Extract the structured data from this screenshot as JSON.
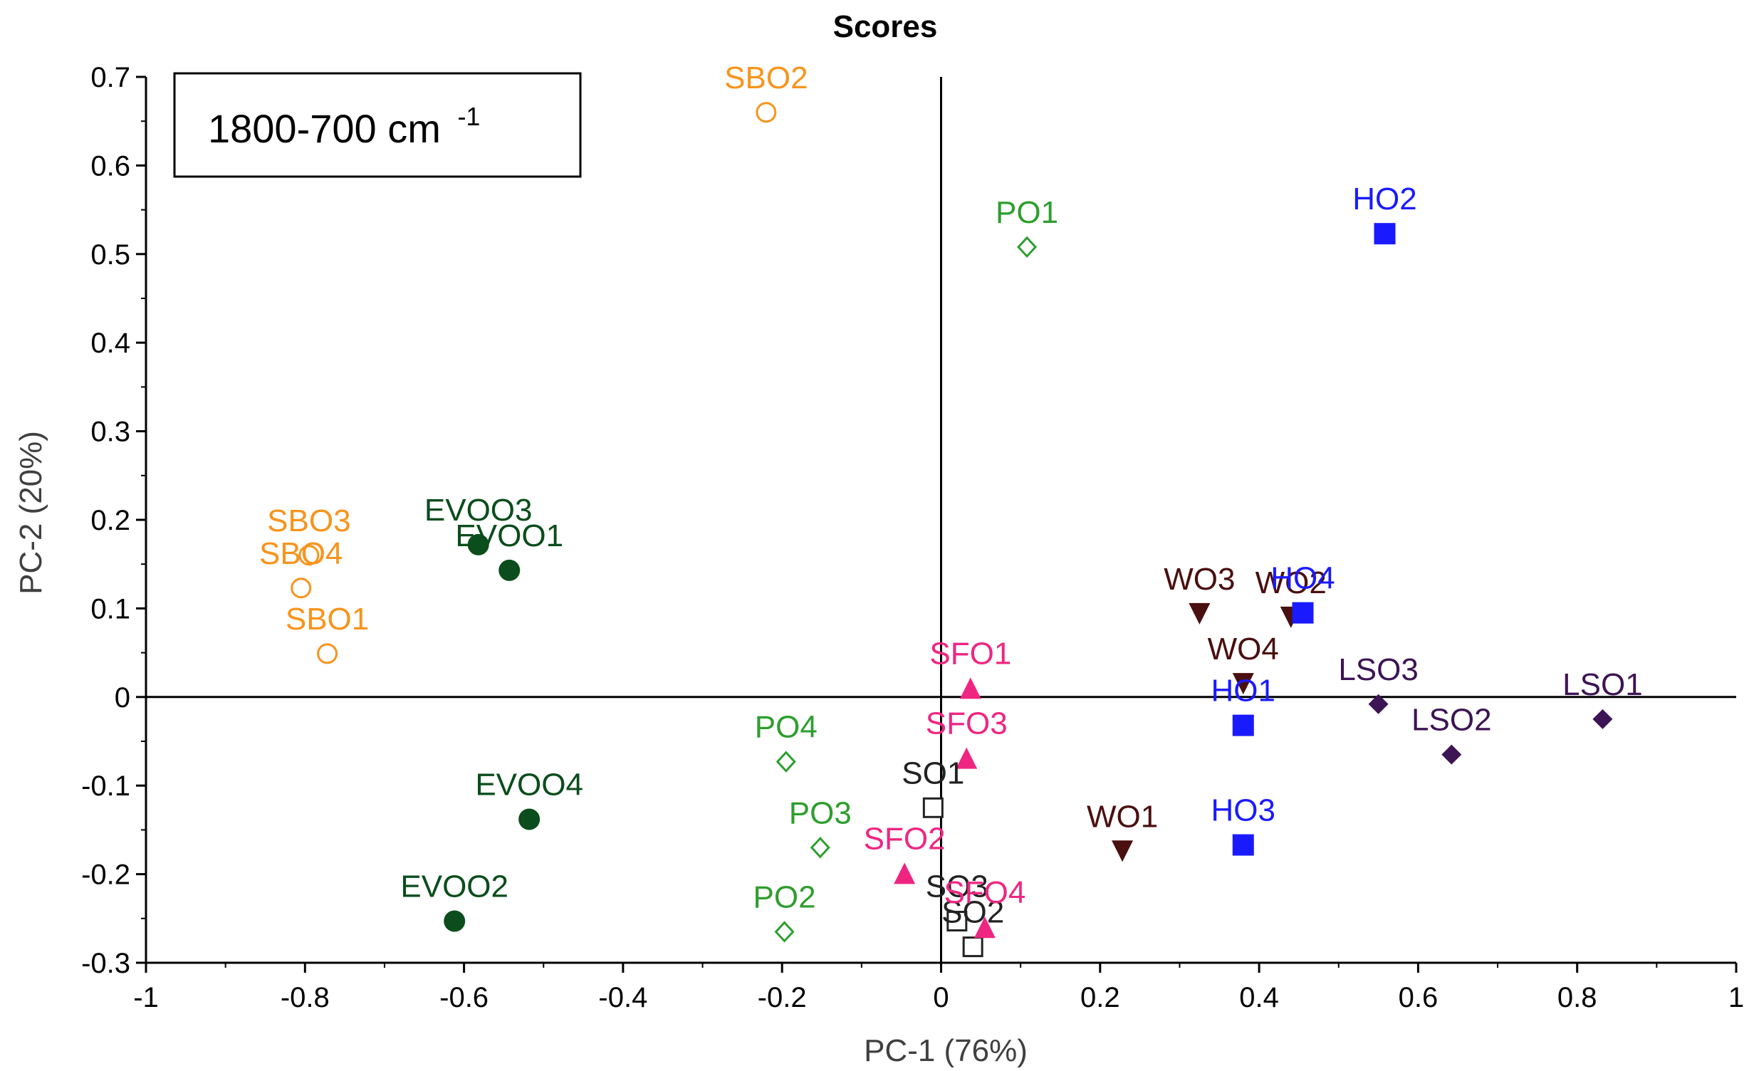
{
  "chart_data": {
    "type": "scatter",
    "title": "Scores",
    "xlabel": "PC-1 (76%)",
    "ylabel": "PC-2 (20%)",
    "xlim": [
      -1,
      1
    ],
    "ylim": [
      -0.3,
      0.7
    ],
    "x_ticks": [
      "-1",
      "-0.8",
      "-0.6",
      "-0.4",
      "-0.2",
      "0",
      "0.2",
      "0.4",
      "0.6",
      "0.8",
      "1"
    ],
    "y_ticks": [
      "0.7",
      "0.6",
      "0.5",
      "0.4",
      "0.3",
      "0.2",
      "0.1",
      "0",
      "-0.1",
      "-0.2",
      "-0.3"
    ],
    "annotation": {
      "text": "1800-700 cm",
      "superscript": "-1"
    },
    "grid": false,
    "series": [
      {
        "name": "SBO",
        "color": "#f7941d",
        "marker": "circle-open",
        "points": [
          {
            "label": "SBO2",
            "x": -0.22,
            "y": 0.66
          },
          {
            "label": "SBO3",
            "x": -0.795,
            "y": 0.16
          },
          {
            "label": "SBO4",
            "x": -0.805,
            "y": 0.123
          },
          {
            "label": "SBO1",
            "x": -0.772,
            "y": 0.049
          }
        ]
      },
      {
        "name": "EVOO",
        "color": "#0b4d1c",
        "marker": "circle-filled",
        "points": [
          {
            "label": "EVOO3",
            "x": -0.582,
            "y": 0.172
          },
          {
            "label": "EVOO1",
            "x": -0.543,
            "y": 0.143
          },
          {
            "label": "EVOO4",
            "x": -0.518,
            "y": -0.138
          },
          {
            "label": "EVOO2",
            "x": -0.612,
            "y": -0.253
          }
        ]
      },
      {
        "name": "PO",
        "color": "#2e9e2e",
        "marker": "diamond-open",
        "points": [
          {
            "label": "PO1",
            "x": 0.108,
            "y": 0.508
          },
          {
            "label": "PO4",
            "x": -0.195,
            "y": -0.073
          },
          {
            "label": "PO3",
            "x": -0.152,
            "y": -0.17
          },
          {
            "label": "PO2",
            "x": -0.197,
            "y": -0.265
          }
        ]
      },
      {
        "name": "SO",
        "color": "#222222",
        "marker": "square-open",
        "points": [
          {
            "label": "SO1",
            "x": -0.01,
            "y": -0.125
          },
          {
            "label": "SO3",
            "x": 0.02,
            "y": -0.253
          },
          {
            "label": "SO2",
            "x": 0.04,
            "y": -0.282
          }
        ]
      },
      {
        "name": "SFO",
        "color": "#ee2682",
        "marker": "triangle-up",
        "points": [
          {
            "label": "SFO1",
            "x": 0.037,
            "y": 0.01
          },
          {
            "label": "SFO3",
            "x": 0.032,
            "y": -0.069
          },
          {
            "label": "SFO2",
            "x": -0.046,
            "y": -0.199
          },
          {
            "label": "SFO4",
            "x": 0.055,
            "y": -0.26
          }
        ]
      },
      {
        "name": "WO",
        "color": "#4a0f0f",
        "marker": "triangle-down",
        "points": [
          {
            "label": "WO3",
            "x": 0.325,
            "y": 0.094
          },
          {
            "label": "WO2",
            "x": 0.44,
            "y": 0.09
          },
          {
            "label": "WO4",
            "x": 0.38,
            "y": 0.015
          },
          {
            "label": "WO1",
            "x": 0.228,
            "y": -0.174
          }
        ]
      },
      {
        "name": "HO",
        "color": "#1a1aff",
        "marker": "square-filled",
        "points": [
          {
            "label": "HO2",
            "x": 0.558,
            "y": 0.523
          },
          {
            "label": "HO4",
            "x": 0.455,
            "y": 0.095
          },
          {
            "label": "HO1",
            "x": 0.38,
            "y": -0.032
          },
          {
            "label": "HO3",
            "x": 0.38,
            "y": -0.167
          }
        ]
      },
      {
        "name": "LSO",
        "color": "#3d1454",
        "marker": "diamond-filled",
        "points": [
          {
            "label": "LSO3",
            "x": 0.55,
            "y": -0.008
          },
          {
            "label": "LSO1",
            "x": 0.832,
            "y": -0.025
          },
          {
            "label": "LSO2",
            "x": 0.642,
            "y": -0.065
          }
        ]
      }
    ]
  }
}
